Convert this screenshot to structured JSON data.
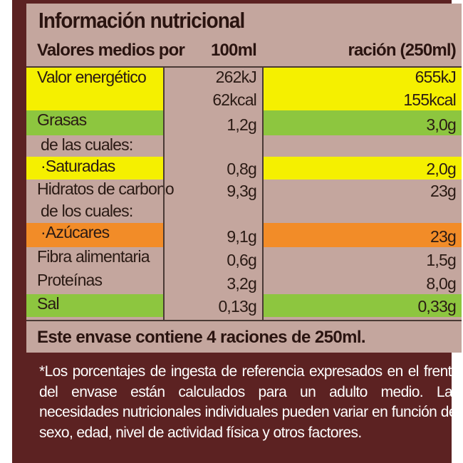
{
  "title": "Información nutricional",
  "header": {
    "label": "Valores medios por",
    "col1": "100ml",
    "col2": "ración (250ml)"
  },
  "colors": {
    "background": "#c4a69e",
    "border": "#5c2222",
    "yellow": "#f5f000",
    "green": "#8dc63f",
    "orange": "#f28c28"
  },
  "rows": [
    {
      "label": "Valor energético",
      "v1": "262kJ",
      "v1b": "62kcal",
      "v2": "655kJ",
      "v2b": "155kcal",
      "highlight": "yellow"
    },
    {
      "label": "Grasas",
      "v1": "1,2g",
      "v2": "3,0g",
      "highlight": "green"
    },
    {
      "label": "de las cuales:",
      "v1": "",
      "v2": "",
      "highlight": "none"
    },
    {
      "label": "·Saturadas",
      "v1": "0,8g",
      "v2": "2,0g",
      "highlight": "yellow"
    },
    {
      "label": "Hidratos de carbono",
      "v1": "9,3g",
      "v2": "23g",
      "highlight": "none"
    },
    {
      "label": "de los cuales:",
      "v1": "",
      "v2": "",
      "highlight": "none"
    },
    {
      "label": "·Azúcares",
      "v1": "9,1g",
      "v2": "23g",
      "highlight": "orange"
    },
    {
      "label": "Fibra alimentaria",
      "v1": "0,6g",
      "v2": "1,5g",
      "highlight": "none"
    },
    {
      "label": "Proteínas",
      "v1": "3,2g",
      "v2": "8,0g",
      "highlight": "none"
    },
    {
      "label": "Sal",
      "v1": "0,13g",
      "v2": "0,33g",
      "highlight": "green"
    }
  ],
  "servings_note": "Este envase contiene 4 raciones de 250ml.",
  "footnote": "*Los porcentajes de ingesta de referencia expresados en el frente del envase están calculados para un adulto medio. Las necesidades nutricionales individuales pueden variar en función del sexo, edad, nivel de actividad física y otros factores."
}
